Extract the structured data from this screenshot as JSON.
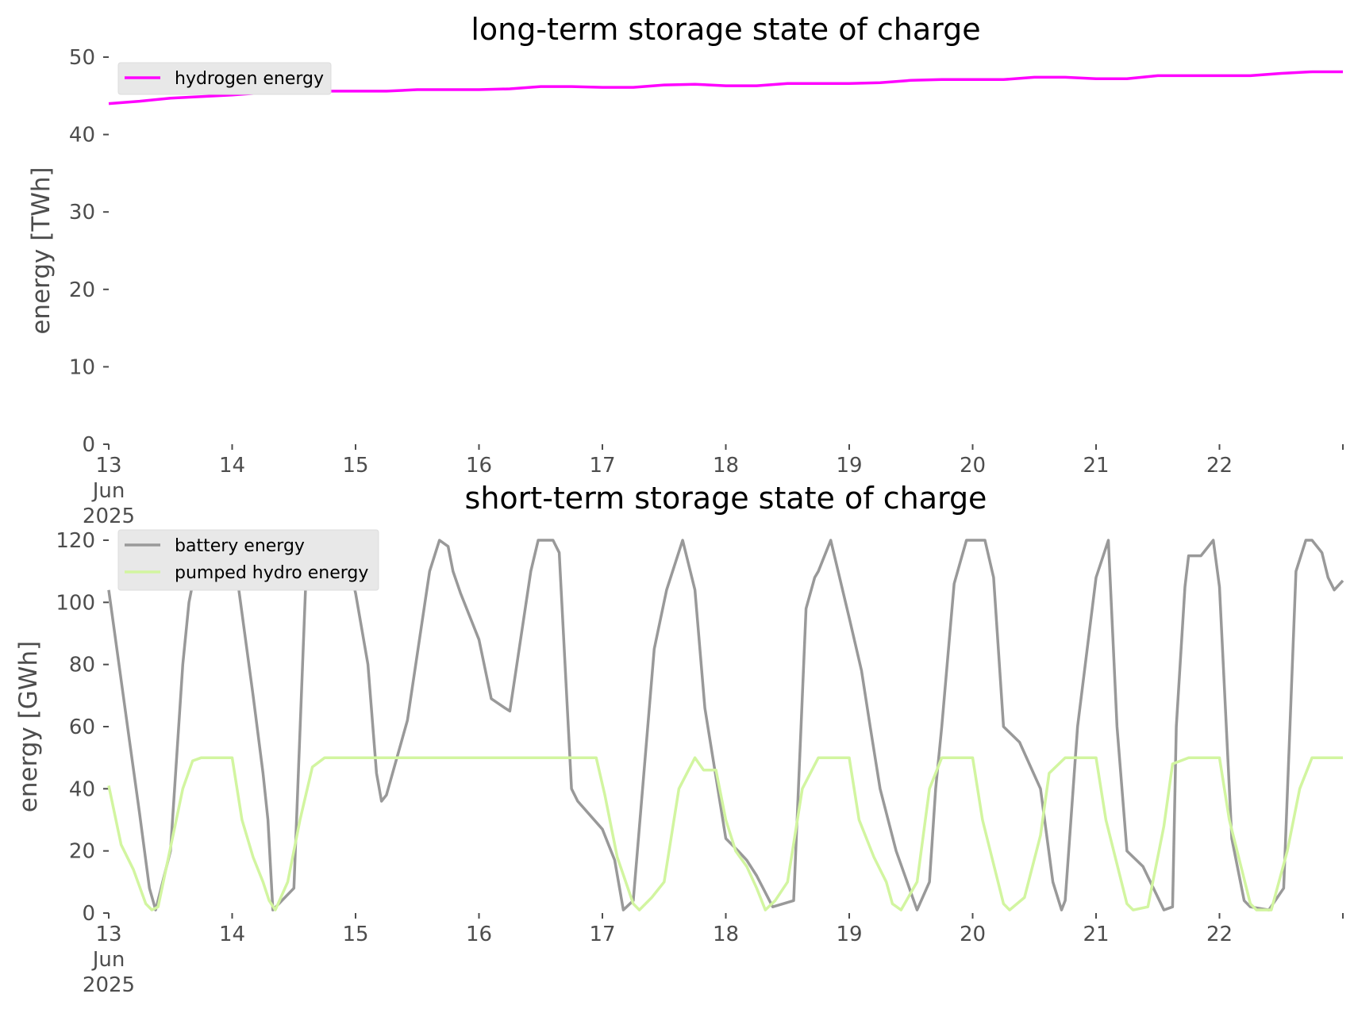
{
  "chart_data": [
    {
      "type": "line",
      "title": "long-term storage state of charge",
      "xlabel": "",
      "ylabel": "energy [TWh]",
      "x_unit": "days since 13 Jun 2025 00:00",
      "xlim": [
        0,
        10
      ],
      "ylim": [
        0,
        50
      ],
      "yticks": [
        0,
        10,
        20,
        30,
        40,
        50
      ],
      "xticks": [
        {
          "value": 0,
          "lines": [
            "13",
            "Jun",
            "2025"
          ]
        },
        {
          "value": 1,
          "lines": [
            "14"
          ]
        },
        {
          "value": 2,
          "lines": [
            "15"
          ]
        },
        {
          "value": 3,
          "lines": [
            "16"
          ]
        },
        {
          "value": 4,
          "lines": [
            "17"
          ]
        },
        {
          "value": 5,
          "lines": [
            "18"
          ]
        },
        {
          "value": 6,
          "lines": [
            "19"
          ]
        },
        {
          "value": 7,
          "lines": [
            "20"
          ]
        },
        {
          "value": 8,
          "lines": [
            "21"
          ]
        },
        {
          "value": 9,
          "lines": [
            "22"
          ]
        }
      ],
      "grid": false,
      "legend_position": "top-left",
      "series": [
        {
          "name": "hydrogen energy",
          "color": "#ff00ff",
          "x": [
            0,
            0.25,
            0.5,
            0.75,
            1.0,
            1.25,
            1.5,
            1.75,
            2.0,
            2.25,
            2.5,
            2.75,
            3.0,
            3.25,
            3.5,
            3.75,
            4.0,
            4.25,
            4.5,
            4.75,
            5.0,
            5.25,
            5.5,
            5.75,
            6.0,
            6.25,
            6.5,
            6.75,
            7.0,
            7.25,
            7.5,
            7.75,
            8.0,
            8.25,
            8.5,
            8.75,
            9.0,
            9.25,
            9.5,
            9.75,
            10.0
          ],
          "values": [
            44.0,
            44.3,
            44.7,
            44.9,
            45.1,
            45.4,
            45.6,
            45.6,
            45.6,
            45.6,
            45.8,
            45.8,
            45.8,
            45.9,
            46.2,
            46.2,
            46.1,
            46.1,
            46.4,
            46.5,
            46.3,
            46.3,
            46.6,
            46.6,
            46.6,
            46.7,
            47.0,
            47.1,
            47.1,
            47.1,
            47.4,
            47.4,
            47.2,
            47.2,
            47.6,
            47.6,
            47.6,
            47.6,
            47.9,
            48.1,
            48.1
          ]
        }
      ]
    },
    {
      "type": "line",
      "title": "short-term storage state of charge",
      "xlabel": "",
      "ylabel": "energy [GWh]",
      "x_unit": "days since 13 Jun 2025 00:00",
      "xlim": [
        0,
        10
      ],
      "ylim": [
        0,
        120
      ],
      "yticks": [
        0,
        20,
        40,
        60,
        80,
        100,
        120
      ],
      "xticks": [
        {
          "value": 0,
          "lines": [
            "13",
            "Jun",
            "2025"
          ]
        },
        {
          "value": 1,
          "lines": [
            "14"
          ]
        },
        {
          "value": 2,
          "lines": [
            "15"
          ]
        },
        {
          "value": 3,
          "lines": [
            "16"
          ]
        },
        {
          "value": 4,
          "lines": [
            "17"
          ]
        },
        {
          "value": 5,
          "lines": [
            "18"
          ]
        },
        {
          "value": 6,
          "lines": [
            "19"
          ]
        },
        {
          "value": 7,
          "lines": [
            "20"
          ]
        },
        {
          "value": 8,
          "lines": [
            "21"
          ]
        },
        {
          "value": 9,
          "lines": [
            "22"
          ]
        }
      ],
      "grid": false,
      "legend_position": "top-left",
      "series": [
        {
          "name": "battery energy",
          "color": "#999999",
          "x": [
            0.0,
            0.17,
            0.25,
            0.33,
            0.38,
            0.5,
            0.6,
            0.65,
            0.75,
            1.0,
            1.17,
            1.25,
            1.29,
            1.33,
            1.5,
            1.6,
            1.65,
            1.75,
            1.9,
            2.0,
            2.1,
            2.17,
            2.21,
            2.25,
            2.42,
            2.6,
            2.68,
            2.75,
            2.79,
            2.85,
            2.93,
            3.0,
            3.1,
            3.21,
            3.25,
            3.42,
            3.48,
            3.6,
            3.65,
            3.75,
            3.8,
            4.0,
            4.1,
            4.17,
            4.25,
            4.42,
            4.52,
            4.65,
            4.75,
            4.83,
            5.0,
            5.1,
            5.17,
            5.25,
            5.38,
            5.55,
            5.65,
            5.72,
            5.75,
            5.85,
            6.0,
            6.1,
            6.17,
            6.25,
            6.38,
            6.55,
            6.65,
            6.7,
            6.75,
            6.85,
            6.95,
            7.0,
            7.1,
            7.17,
            7.25,
            7.38,
            7.55,
            7.65,
            7.72,
            7.75,
            7.85,
            8.0,
            8.1,
            8.17,
            8.25,
            8.38,
            8.55,
            8.62,
            8.65,
            8.72,
            8.75,
            8.85,
            8.95,
            9.0,
            9.1,
            9.2,
            9.25,
            9.4,
            9.52,
            9.62,
            9.7,
            9.75,
            9.83,
            9.88,
            9.93,
            10.0
          ],
          "values": [
            104,
            55,
            32,
            8,
            1,
            20,
            80,
            100,
            120,
            120,
            70,
            45,
            30,
            1,
            8,
            110,
            118,
            120,
            120,
            103,
            80,
            45,
            36,
            38,
            62,
            110,
            120,
            118,
            110,
            103,
            95,
            88,
            69,
            66,
            65,
            110,
            120,
            120,
            116,
            40,
            36,
            27,
            17,
            1,
            4,
            85,
            104,
            120,
            104,
            66,
            24,
            20,
            17,
            12,
            2,
            4,
            98,
            108,
            110,
            120,
            95,
            78,
            60,
            40,
            20,
            1,
            10,
            40,
            60,
            106,
            120,
            120,
            120,
            108,
            60,
            55,
            40,
            10,
            1,
            4,
            60,
            108,
            120,
            60,
            20,
            15,
            1,
            2,
            60,
            105,
            115,
            115,
            120,
            105,
            24,
            4,
            2,
            1,
            8,
            110,
            120,
            120,
            116,
            108,
            104,
            107
          ]
        },
        {
          "name": "pumped hydro energy",
          "color": "#d2f5a0",
          "x": [
            0.0,
            0.1,
            0.2,
            0.3,
            0.35,
            0.4,
            0.6,
            0.68,
            0.75,
            1.0,
            1.08,
            1.17,
            1.25,
            1.3,
            1.35,
            1.45,
            1.55,
            1.65,
            1.75,
            2.0,
            2.5,
            3.0,
            3.5,
            3.95,
            4.02,
            4.12,
            4.25,
            4.3,
            4.4,
            4.5,
            4.62,
            4.75,
            4.82,
            4.92,
            5.0,
            5.08,
            5.17,
            5.25,
            5.32,
            5.4,
            5.5,
            5.62,
            5.75,
            6.0,
            6.08,
            6.2,
            6.3,
            6.35,
            6.42,
            6.55,
            6.65,
            6.75,
            7.0,
            7.08,
            7.25,
            7.3,
            7.42,
            7.55,
            7.62,
            7.75,
            8.0,
            8.08,
            8.25,
            8.3,
            8.42,
            8.55,
            8.62,
            8.75,
            9.0,
            9.08,
            9.25,
            9.3,
            9.42,
            9.55,
            9.65,
            9.75,
            10.0
          ],
          "values": [
            41,
            22,
            14,
            3,
            1,
            2,
            40,
            49,
            50,
            50,
            30,
            18,
            10,
            4,
            1,
            10,
            30,
            47,
            50,
            50,
            50,
            50,
            50,
            50,
            38,
            18,
            3,
            1,
            5,
            10,
            40,
            50,
            46,
            46,
            30,
            20,
            15,
            8,
            1,
            4,
            10,
            40,
            50,
            50,
            30,
            18,
            10,
            3,
            1,
            10,
            40,
            50,
            50,
            30,
            3,
            1,
            5,
            25,
            45,
            50,
            50,
            30,
            3,
            1,
            2,
            28,
            48,
            50,
            50,
            30,
            3,
            1,
            1,
            20,
            40,
            50,
            50
          ]
        }
      ]
    }
  ]
}
